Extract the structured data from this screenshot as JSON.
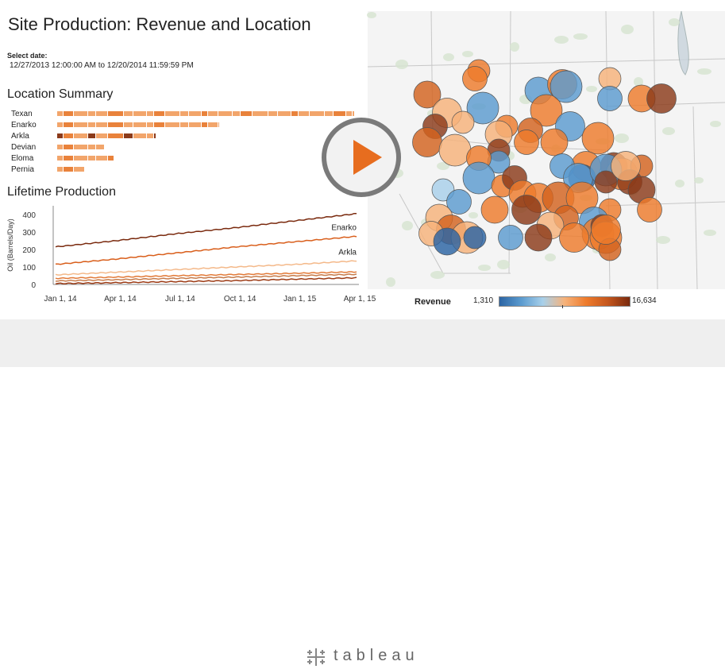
{
  "dashboard": {
    "title": "Site Production: Revenue and Location",
    "select_date_label": "Select date:",
    "select_date_value": "12/27/2013 12:00:00 AM to 12/20/2014 11:59:59 PM"
  },
  "location_summary": {
    "title": "Location Summary",
    "colors": {
      "light": "#f2a56b",
      "mid": "#e9823b",
      "dark": "#8b3a1a"
    },
    "rows": [
      {
        "name": "Texan",
        "value": 375
      },
      {
        "name": "Enarko",
        "value": 205
      },
      {
        "name": "Arkla",
        "value": 125
      },
      {
        "name": "Devian",
        "value": 60
      },
      {
        "name": "Eloma",
        "value": 72
      },
      {
        "name": "Pernia",
        "value": 35
      }
    ]
  },
  "lifetime_production": {
    "title": "Lifetime Production"
  },
  "chart_data": {
    "type": "line",
    "title": "Lifetime Production",
    "ylabel": "Oil (Barrels/Day)",
    "xlabel": "",
    "x_tick_labels": [
      "Jan 1, 14",
      "Apr 1, 14",
      "Jul 1, 14",
      "Oct 1, 14",
      "Jan 1, 15",
      "Apr 1, 15"
    ],
    "x": [
      "Jan 1, 14",
      "Apr 1, 14",
      "Jul 1, 14",
      "Oct 1, 14",
      "Jan 1, 15",
      "Apr 1, 15"
    ],
    "ylim": [
      0,
      450
    ],
    "y_ticks": [
      0,
      100,
      200,
      300,
      400
    ],
    "series": [
      {
        "name": "",
        "color": "#7a2a0e",
        "values": [
          215,
          250,
          290,
          325,
          365,
          405
        ]
      },
      {
        "name": "Enarko",
        "color": "#d95f1c",
        "values": [
          115,
          145,
          180,
          215,
          245,
          275
        ]
      },
      {
        "name": "Arkla",
        "color": "#f4b98a",
        "values": [
          55,
          70,
          85,
          100,
          115,
          135
        ]
      },
      {
        "name": "",
        "color": "#e27a38",
        "values": [
          35,
          42,
          50,
          57,
          64,
          72
        ]
      },
      {
        "name": "",
        "color": "#c77b4a",
        "values": [
          20,
          27,
          35,
          42,
          50,
          58
        ]
      },
      {
        "name": "",
        "color": "#9c3a14",
        "values": [
          5,
          10,
          16,
          22,
          30,
          38
        ]
      }
    ],
    "labels": [
      {
        "series": "Enarko",
        "text": "Enarko"
      },
      {
        "series": "Arkla",
        "text": "Arkla"
      }
    ]
  },
  "map": {
    "legend_title": "Revenue",
    "legend_min": "1,310",
    "legend_max": "16,634"
  },
  "overlay": {
    "play_icon": "play-icon"
  },
  "footer": {
    "brand": "tableau",
    "logo_icon": "tableau-cross-icon"
  }
}
